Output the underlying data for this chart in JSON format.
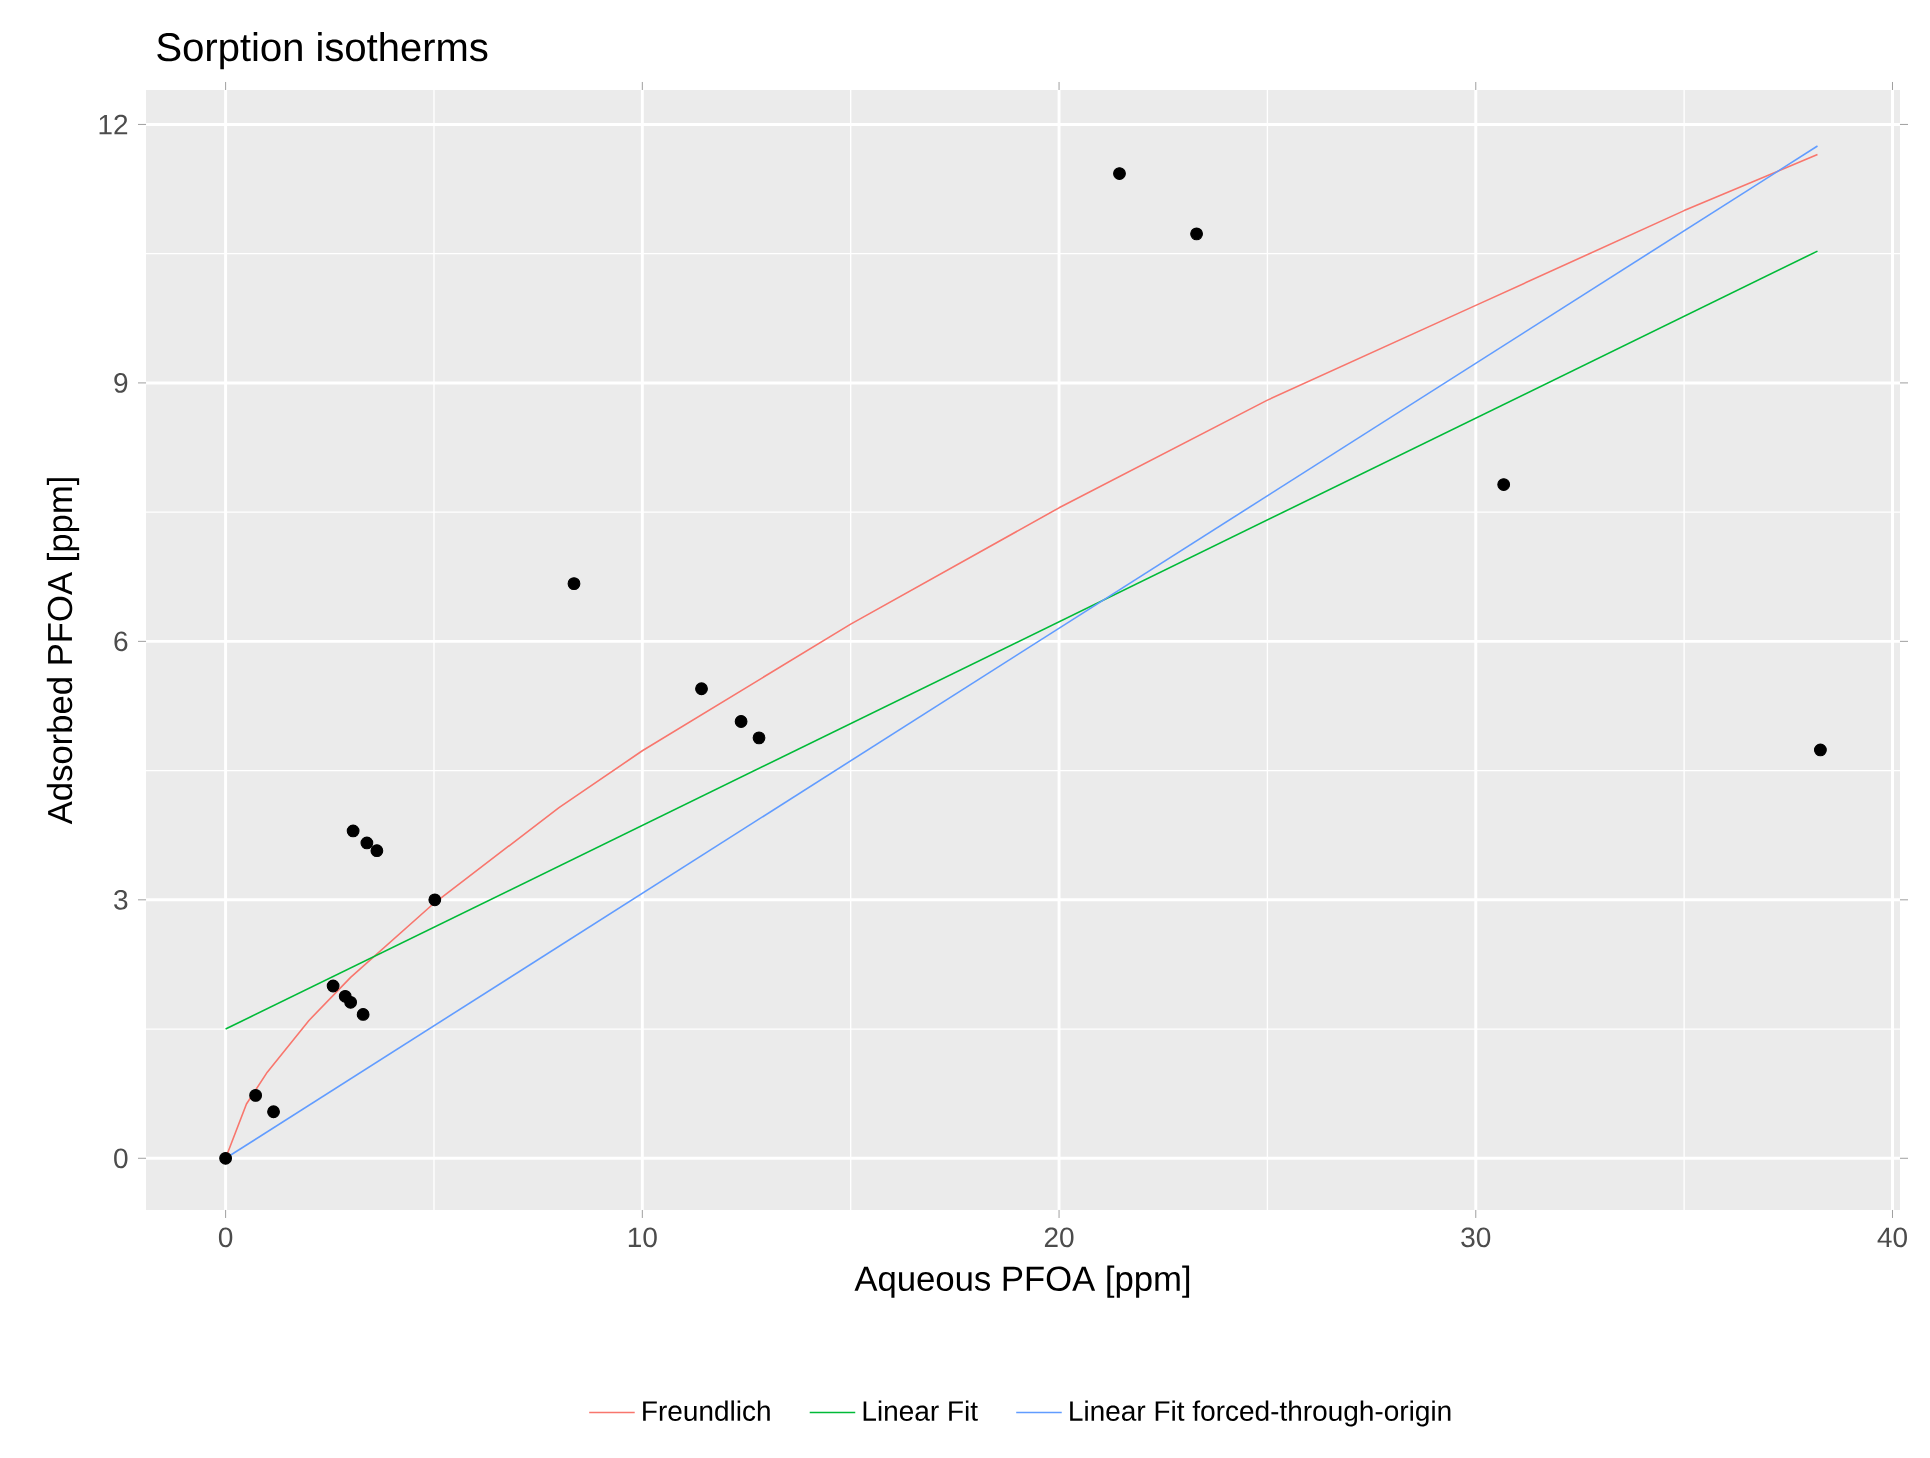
{
  "chart_data": {
    "type": "scatter",
    "title": "Sorption isotherms",
    "xlabel": "Aqueous PFOA [ppm]",
    "ylabel": "Adsorbed PFOA [ppm]",
    "xlim": [
      -1.91,
      40.18
    ],
    "ylim": [
      -0.6,
      12.4
    ],
    "xticks": [
      0,
      10,
      20,
      30,
      40
    ],
    "yticks": [
      0,
      3,
      6,
      9,
      12
    ],
    "grid": true,
    "legend": "bottom",
    "series": [
      {
        "type": "line",
        "name": "Freundlich",
        "color": "#f8766d",
        "marker": "none",
        "line_style": "solid",
        "x": [
          0,
          0.5,
          1,
          2,
          3,
          5,
          8,
          10,
          15,
          20,
          25,
          30,
          35,
          38.2
        ],
        "values": [
          0,
          0.63,
          1.0,
          1.6,
          2.1,
          2.96,
          4.07,
          4.73,
          6.2,
          7.55,
          8.8,
          9.9,
          11.0,
          11.65
        ]
      },
      {
        "type": "line",
        "name": "Linear Fit",
        "color": "#00ba38",
        "marker": "none",
        "line_style": "solid",
        "x": [
          0,
          38.2
        ],
        "values": [
          1.5,
          10.53
        ]
      },
      {
        "type": "line",
        "name": "Linear Fit forced-through-origin",
        "color": "#619cff",
        "marker": "none",
        "line_style": "solid",
        "x": [
          0,
          38.2
        ],
        "values": [
          0,
          11.75
        ]
      },
      {
        "color": "#000000",
        "marker": "circle",
        "x": [
          0,
          0.72,
          1.15,
          2.58,
          2.87,
          3.0,
          3.3,
          3.06,
          3.39,
          3.63,
          5.02,
          8.36,
          11.42,
          12.37,
          12.8,
          21.45,
          23.3,
          30.67,
          38.27
        ],
        "values": [
          0,
          0.73,
          0.54,
          2.0,
          1.88,
          1.81,
          1.67,
          3.8,
          3.66,
          3.57,
          3.0,
          6.67,
          5.45,
          5.07,
          4.88,
          11.43,
          10.73,
          7.82,
          4.74
        ]
      }
    ]
  }
}
